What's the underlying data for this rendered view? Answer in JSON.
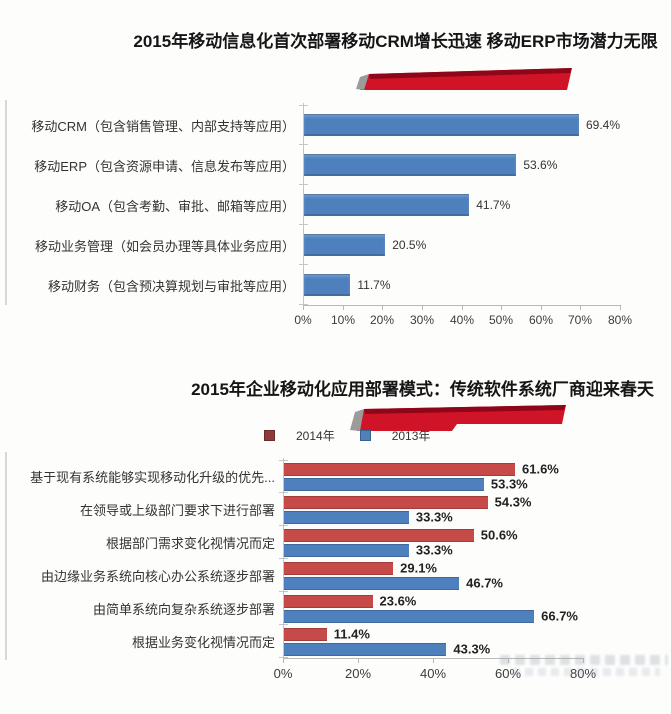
{
  "colors": {
    "bar_blue": "#4d80bd",
    "bar_red": "#c64a47",
    "ribbon_red": "#d11328",
    "ribbon_bevel": "#8f0619",
    "ribbon_cap_gray": "#9b9b9b",
    "legend_red": "#8e3a38",
    "legend_blue": "#4f81bd",
    "axis_line": "#b9b9b7",
    "text_dark": "#333333"
  },
  "chart_data": [
    {
      "type": "bar",
      "orientation": "horizontal",
      "title": "2015年移动信息化首次部署移动CRM增长迅速 移动ERP市场潜力无限",
      "categories": [
        "移动CRM（包含销售管理、内部支持等应用）",
        "移动ERP（包含资源申请、信息发布等应用）",
        "移动OA（包含考勤、审批、邮箱等应用）",
        "移动业务管理（如会员办理等具体业务应用）",
        "移动财务（包含预决算规划与审批等应用）"
      ],
      "values": [
        69.4,
        53.6,
        41.7,
        20.5,
        11.7
      ],
      "value_labels": [
        "69.4%",
        "53.6%",
        "41.7%",
        "20.5%",
        "11.7%"
      ],
      "xlim": [
        0,
        80
      ],
      "x_ticks": [
        "0%",
        "10%",
        "20%",
        "30%",
        "40%",
        "50%",
        "60%",
        "70%",
        "80%"
      ],
      "grid": false,
      "legend": null
    },
    {
      "type": "bar",
      "orientation": "horizontal",
      "title": "2015年企业移动化应用部署模式：传统软件系统厂商迎来春天",
      "categories": [
        "基于现有系统能够实现移动化升级的优先...",
        "在领导或上级部门要求下进行部署",
        "根据部门需求变化视情况而定",
        "由边缘业务系统向核心办公系统逐步部署",
        "由简单系统向复杂系统逐步部署",
        "根据业务变化视情况而定"
      ],
      "series": [
        {
          "name": "2014年",
          "values": [
            61.6,
            54.3,
            50.6,
            29.1,
            23.6,
            11.4
          ],
          "value_labels": [
            "61.6%",
            "54.3%",
            "50.6%",
            "29.1%",
            "23.6%",
            "11.4%"
          ]
        },
        {
          "name": "2013年",
          "values": [
            53.3,
            33.3,
            33.3,
            46.7,
            66.7,
            43.3
          ],
          "value_labels": [
            "53.3%",
            "33.3%",
            "33.3%",
            "46.7%",
            "66.7%",
            "43.3%"
          ]
        }
      ],
      "xlim": [
        0,
        80
      ],
      "x_ticks": [
        "0%",
        "20%",
        "40%",
        "60%",
        "80%"
      ],
      "grid": false,
      "legend_position": "top"
    }
  ]
}
